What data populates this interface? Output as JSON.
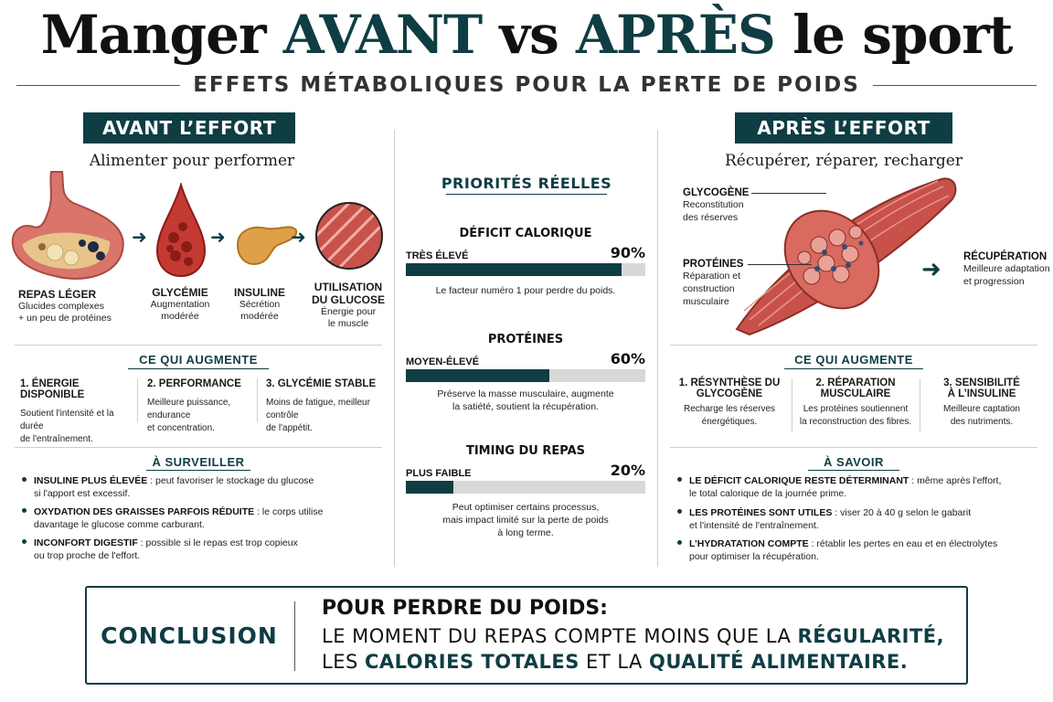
{
  "title": {
    "part1": "Manger ",
    "avant": "AVANT",
    "vs": " vs ",
    "apres": "APRÈS",
    "part2": " le sport"
  },
  "subtitle": "EFFETS MÉTABOLIQUES POUR LA PERTE DE POIDS",
  "colors": {
    "accent": "#0f3d44",
    "track": "#d8d8d8",
    "muscle": "#c8524a",
    "blood": "#b3221e",
    "pancreas": "#e0a04a"
  },
  "left": {
    "banner": "AVANT L’EFFORT",
    "tagline": "Alimenter pour performer",
    "stages": [
      {
        "icon": "stomach-icon",
        "title": "REPAS LÉGER",
        "desc1": "Glucides complexes",
        "desc2": "+ un peu de protéines"
      },
      {
        "icon": "blood-drop-icon",
        "title": "GLYCÉMIE",
        "desc1": "Augmentation",
        "desc2": "modérée"
      },
      {
        "icon": "pancreas-icon",
        "title": "INSULINE",
        "desc1": "Sécrétion",
        "desc2": "modérée"
      },
      {
        "icon": "muscle-fiber-icon",
        "title1": "UTILISATION",
        "title2": "DU GLUCOSE",
        "desc1": "Énergie pour",
        "desc2": "le muscle"
      }
    ],
    "increase_header": "CE QUI AUGMENTE",
    "increases": [
      {
        "title": "1. ÉNERGIE DISPONIBLE",
        "desc1": "Soutient l'intensité et la durée",
        "desc2": "de l'entraînement."
      },
      {
        "title": "2. PERFORMANCE",
        "desc1": "Meilleure puissance, endurance",
        "desc2": "et concentration."
      },
      {
        "title": "3. GLYCÉMIE STABLE",
        "desc1": "Moins de fatigue, meilleur contrôle",
        "desc2": "de l'appétit."
      }
    ],
    "watch_header": "À SURVEILLER",
    "watch": [
      {
        "bold": "INSULINE PLUS ÉLEVÉE",
        "text1": " : peut favoriser le stockage du glucose",
        "text2": "si l'apport est excessif."
      },
      {
        "bold": "OXYDATION DES GRAISSES PARFOIS RÉDUITE",
        "text1": " : le corps utilise",
        "text2": "davantage le glucose comme carburant."
      },
      {
        "bold": "INCONFORT DIGESTIF",
        "text1": " : possible si le repas est trop copieux",
        "text2": "ou trop proche de l'effort."
      }
    ]
  },
  "middle": {
    "title": "PRIORITÉS RÉELLES",
    "bars": [
      {
        "name": "DÉFICIT CALORIQUE",
        "level": "TRÈS ÉLEVÉ",
        "pct_label": "90%",
        "value": 90,
        "desc1": "Le facteur numéro 1 pour perdre du poids.",
        "desc2": "",
        "desc3": ""
      },
      {
        "name": "PROTÉINES",
        "level": "MOYEN-ÉLEVÉ",
        "pct_label": "60%",
        "value": 60,
        "desc1": "Préserve la masse musculaire, augmente",
        "desc2": "la satiété, soutient la récupération.",
        "desc3": ""
      },
      {
        "name": "TIMING DU REPAS",
        "level": "PLUS FAIBLE",
        "pct_label": "20%",
        "value": 20,
        "desc1": "Peut optimiser certains processus,",
        "desc2": "mais impact limité sur la perte de poids",
        "desc3": "à long terme."
      }
    ]
  },
  "right": {
    "banner": "APRÈS L’EFFORT",
    "tagline": "Récupérer, réparer, recharger",
    "labels": [
      {
        "title": "GLYCOGÈNE",
        "desc1": "Reconstitution",
        "desc2": "des réserves",
        "desc3": ""
      },
      {
        "title": "PROTÉINES",
        "desc1": "Réparation et",
        "desc2": "construction",
        "desc3": "musculaire"
      },
      {
        "title": "RÉCUPÉRATION",
        "desc1": "Meilleure adaptation",
        "desc2": "et progression",
        "desc3": ""
      }
    ],
    "increase_header": "CE QUI AUGMENTE",
    "increases": [
      {
        "title1": "1. RÉSYNTHÈSE DU",
        "title2": "GLYCOGÈNE",
        "desc1": "Recharge les réserves",
        "desc2": "énergétiques."
      },
      {
        "title1": "2. RÉPARATION",
        "title2": "MUSCULAIRE",
        "desc1": "Les protéines soutiennent",
        "desc2": "la reconstruction des fibres."
      },
      {
        "title1": "3. SENSIBILITÉ",
        "title2": "À L’INSULINE",
        "desc1": "Meilleure captation",
        "desc2": "des nutriments."
      }
    ],
    "know_header": "À SAVOIR",
    "know": [
      {
        "bold": "LE DÉFICIT CALORIQUE RESTE DÉTERMINANT",
        "text1": " : même après l'effort,",
        "text2": "le total calorique de la journée prime."
      },
      {
        "bold": "LES PROTÉINES SONT UTILES",
        "text1": " : viser 20 à 40 g selon le gabarit",
        "text2": "et l'intensité de l'entraînement."
      },
      {
        "bold": "L’HYDRATATION COMPTE",
        "text1": " : rétablir les pertes en eau et en électrolytes",
        "text2": "pour optimiser la récupération."
      }
    ]
  },
  "conclusion": {
    "label": "CONCLUSION",
    "head": "POUR PERDRE DU POIDS:",
    "l1a": "LE MOMENT DU REPAS COMPTE MOINS QUE LA ",
    "l1b": "RÉGULARITÉ,",
    "l2a": "LES ",
    "l2b": "CALORIES TOTALES",
    "l2c": " ET LA ",
    "l2d": "QUALITÉ ALIMENTAIRE."
  }
}
